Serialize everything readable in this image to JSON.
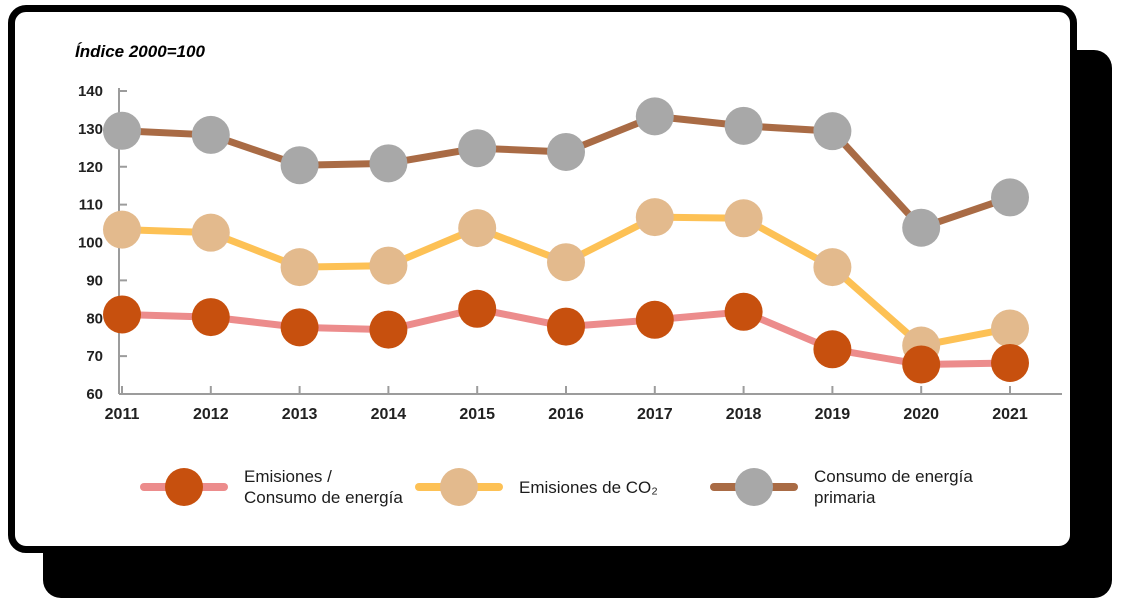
{
  "chart_data": {
    "type": "line",
    "title": "Índice 2000=100",
    "x": [
      2011,
      2012,
      2013,
      2014,
      2015,
      2016,
      2017,
      2018,
      2019,
      2020,
      2021
    ],
    "ylim": [
      60,
      140
    ],
    "ytick_step": 10,
    "grid": false,
    "legend_position": "bottom",
    "axis_color": "#9C9C9C",
    "label_color": "#212121",
    "series": [
      {
        "name": "Emisiones / Consumo de energía",
        "legend_lines": [
          "Emisiones /",
          "Consumo de energía"
        ],
        "line_color": "#EC8C8C",
        "marker_color": "#C7500E",
        "values": [
          81.0,
          80.3,
          77.6,
          77.0,
          82.5,
          77.8,
          79.6,
          81.7,
          71.8,
          67.8,
          68.2
        ]
      },
      {
        "name": "Emisiones de CO₂",
        "legend_lines": [
          "Emisiones de CO₂"
        ],
        "line_color": "#FDC155",
        "marker_color": "#E3BA8D",
        "values": [
          103.4,
          102.6,
          93.5,
          93.9,
          103.8,
          94.8,
          106.7,
          106.4,
          93.5,
          72.8,
          77.3
        ]
      },
      {
        "name": "Consumo de energía primaria",
        "legend_lines": [
          "Consumo de energía",
          "primaria"
        ],
        "line_color": "#A96B45",
        "marker_color": "#A8A8A8",
        "values": [
          129.5,
          128.4,
          120.4,
          120.9,
          124.9,
          123.9,
          133.3,
          130.8,
          129.4,
          103.9,
          111.9
        ]
      }
    ]
  }
}
